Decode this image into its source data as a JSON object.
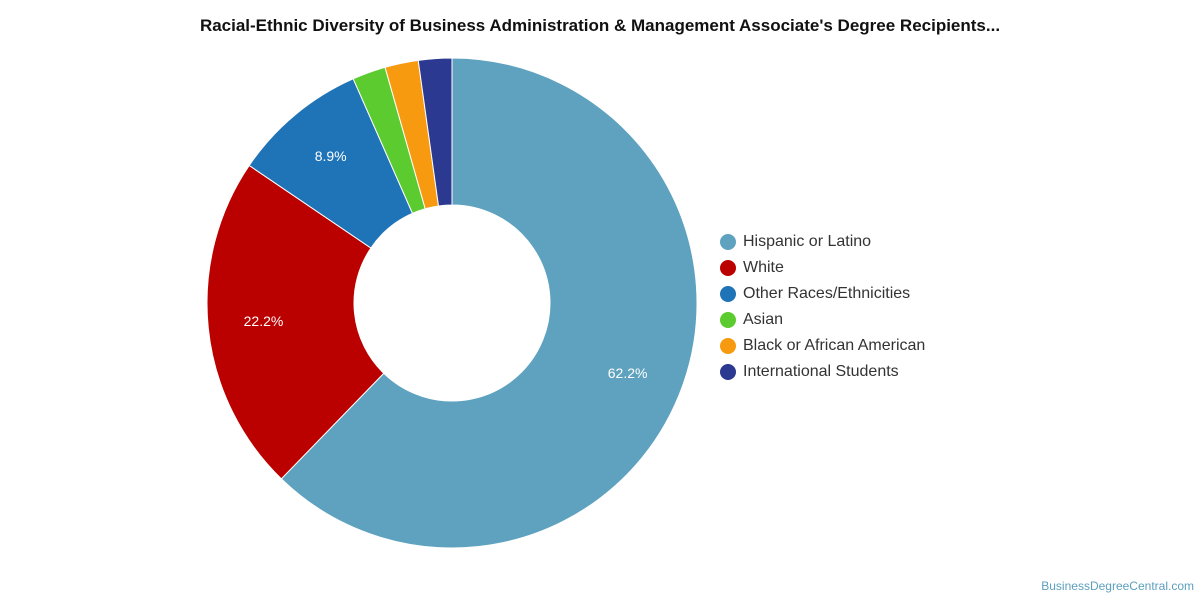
{
  "chart_data": {
    "type": "pie",
    "title": "Racial-Ethnic Diversity of Business Administration & Management Associate's Degree Recipients...",
    "categories": [
      "Hispanic or Latino",
      "White",
      "Other Races/Ethnicities",
      "Asian",
      "Black or African American",
      "International Students"
    ],
    "values": [
      62.2,
      22.2,
      8.9,
      2.2,
      2.2,
      2.2
    ],
    "data_labels": [
      "62.2%",
      "22.2%",
      "8.9%",
      "",
      "",
      ""
    ],
    "colors": [
      "#5ea2bf",
      "#bb0000",
      "#1f73b7",
      "#5ccb2f",
      "#f79a10",
      "#2b3990"
    ],
    "donut": true,
    "legend_position": "right"
  },
  "footer": {
    "source": "BusinessDegreeCentral.com"
  }
}
